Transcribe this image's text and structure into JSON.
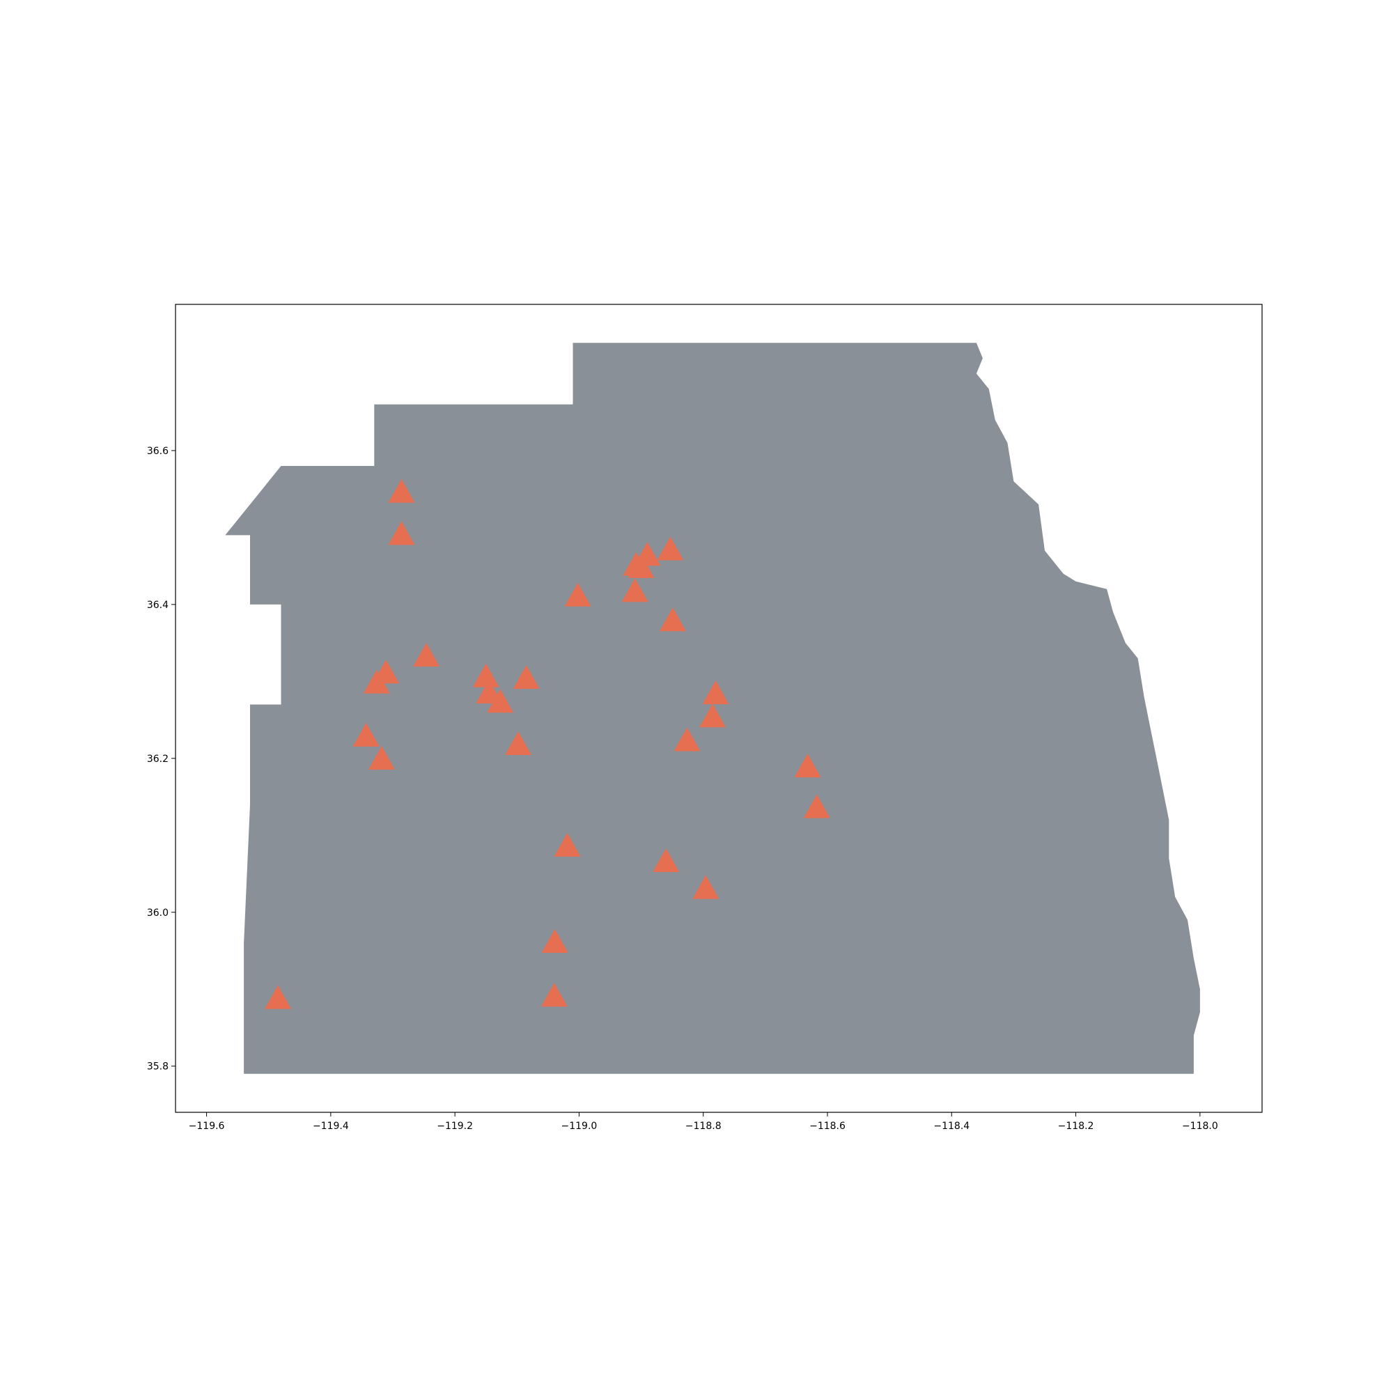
{
  "chart_data": {
    "type": "scatter",
    "title": "",
    "xlabel": "",
    "ylabel": "",
    "xlim": [
      -119.65,
      -117.9
    ],
    "ylim": [
      35.74,
      36.79
    ],
    "grid": false,
    "legend": "none",
    "x_ticks": [
      -119.6,
      -119.4,
      -119.2,
      -119.0,
      -118.8,
      -118.6,
      -118.4,
      -118.2,
      -118.0
    ],
    "x_tick_labels": [
      "−119.6",
      "−119.4",
      "−119.2",
      "−119.0",
      "−118.8",
      "−118.6",
      "−118.4",
      "−118.2",
      "−118.0"
    ],
    "y_ticks": [
      35.8,
      36.0,
      36.2,
      36.4,
      36.6
    ],
    "y_tick_labels": [
      "35.8",
      "36.0",
      "36.2",
      "36.4",
      "36.6"
    ],
    "region": {
      "color": "#8a9098",
      "boundary": [
        [
          -119.57,
          36.49
        ],
        [
          -119.52,
          36.54
        ],
        [
          -119.48,
          36.58
        ],
        [
          -119.33,
          36.58
        ],
        [
          -119.33,
          36.66
        ],
        [
          -119.01,
          36.66
        ],
        [
          -119.01,
          36.74
        ],
        [
          -118.57,
          36.74
        ],
        [
          -118.36,
          36.74
        ],
        [
          -118.35,
          36.72
        ],
        [
          -118.36,
          36.7
        ],
        [
          -118.34,
          36.68
        ],
        [
          -118.33,
          36.64
        ],
        [
          -118.31,
          36.61
        ],
        [
          -118.3,
          36.56
        ],
        [
          -118.26,
          36.53
        ],
        [
          -118.25,
          36.47
        ],
        [
          -118.22,
          36.44
        ],
        [
          -118.2,
          36.43
        ],
        [
          -118.15,
          36.42
        ],
        [
          -118.14,
          36.39
        ],
        [
          -118.12,
          36.35
        ],
        [
          -118.1,
          36.33
        ],
        [
          -118.09,
          36.28
        ],
        [
          -118.08,
          36.24
        ],
        [
          -118.07,
          36.2
        ],
        [
          -118.06,
          36.16
        ],
        [
          -118.05,
          36.12
        ],
        [
          -118.05,
          36.07
        ],
        [
          -118.04,
          36.02
        ],
        [
          -118.02,
          35.99
        ],
        [
          -118.01,
          35.94
        ],
        [
          -118.0,
          35.9
        ],
        [
          -118.0,
          35.87
        ],
        [
          -118.01,
          35.84
        ],
        [
          -118.01,
          35.79
        ],
        [
          -118.1,
          35.79
        ],
        [
          -118.5,
          35.79
        ],
        [
          -118.9,
          35.79
        ],
        [
          -119.2,
          35.79
        ],
        [
          -119.54,
          35.79
        ],
        [
          -119.54,
          35.96
        ],
        [
          -119.53,
          36.14
        ],
        [
          -119.53,
          36.27
        ],
        [
          -119.48,
          36.27
        ],
        [
          -119.48,
          36.4
        ],
        [
          -119.53,
          36.4
        ],
        [
          -119.53,
          36.49
        ]
      ]
    },
    "series": [
      {
        "marker": "triangle",
        "color": "#e56f50",
        "points": [
          [
            -119.286,
            36.545
          ],
          [
            -119.286,
            36.49
          ],
          [
            -119.002,
            36.41
          ],
          [
            -118.908,
            36.45
          ],
          [
            -118.89,
            36.463
          ],
          [
            -118.9,
            36.447
          ],
          [
            -118.853,
            36.47
          ],
          [
            -118.91,
            36.416
          ],
          [
            -118.849,
            36.378
          ],
          [
            -119.246,
            36.332
          ],
          [
            -119.311,
            36.31
          ],
          [
            -119.326,
            36.297
          ],
          [
            -119.15,
            36.305
          ],
          [
            -119.145,
            36.284
          ],
          [
            -119.127,
            36.272
          ],
          [
            -119.085,
            36.303
          ],
          [
            -118.78,
            36.283
          ],
          [
            -118.785,
            36.253
          ],
          [
            -118.826,
            36.222
          ],
          [
            -119.343,
            36.228
          ],
          [
            -119.318,
            36.198
          ],
          [
            -119.098,
            36.217
          ],
          [
            -118.632,
            36.188
          ],
          [
            -118.617,
            36.135
          ],
          [
            -119.019,
            36.085
          ],
          [
            -118.86,
            36.065
          ],
          [
            -118.796,
            36.03
          ],
          [
            -119.039,
            35.96
          ],
          [
            -119.04,
            35.89
          ],
          [
            -119.485,
            35.887
          ]
        ]
      }
    ]
  }
}
